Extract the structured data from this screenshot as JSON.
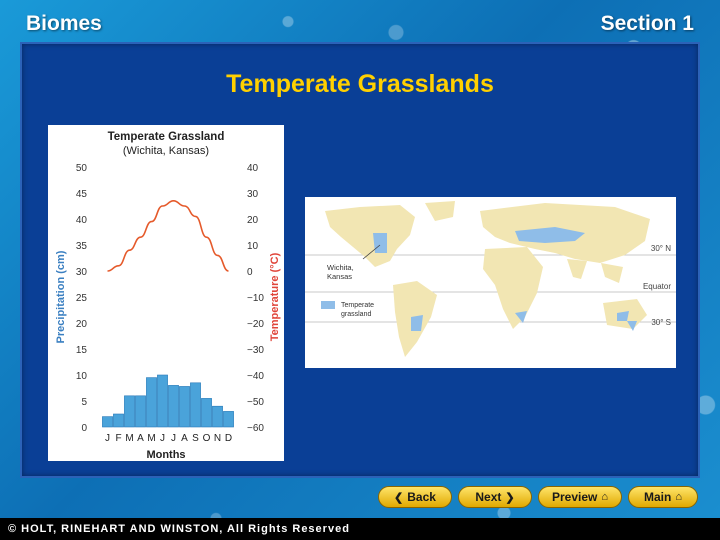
{
  "header": {
    "left": "Biomes",
    "right": "Section 1"
  },
  "slide": {
    "title": "Temperate Grasslands"
  },
  "chart_data": {
    "type": "bar",
    "title": "Temperate Grassland",
    "subtitle": "(Wichita, Kansas)",
    "categories": [
      "J",
      "F",
      "M",
      "A",
      "M",
      "J",
      "J",
      "A",
      "S",
      "O",
      "N",
      "D"
    ],
    "xlabel": "Months",
    "ylabel": "Precipitation (cm)",
    "ylabel_right": "Temperature (°C)",
    "ylim": [
      0,
      50
    ],
    "ylim_right": [
      -60,
      40
    ],
    "yticks": [
      "0",
      "5",
      "10",
      "15",
      "20",
      "25",
      "30",
      "35",
      "40",
      "45",
      "50"
    ],
    "yticks_right": [
      "−60",
      "−50",
      "−40",
      "−30",
      "−20",
      "−10",
      "0",
      "10",
      "20",
      "30",
      "40"
    ],
    "series": [
      {
        "type": "bar",
        "axis": "left",
        "values": [
          2.0,
          2.5,
          6.0,
          6.0,
          9.5,
          10.0,
          8.0,
          7.8,
          8.5,
          5.5,
          4.0,
          3.0
        ]
      },
      {
        "type": "line",
        "axis": "right",
        "values": [
          0,
          2,
          8,
          13,
          19,
          25,
          27,
          25,
          21,
          13,
          6,
          0
        ]
      }
    ],
    "colors": {
      "bars": "#4aa3da",
      "line": "#e55a2b",
      "left_axis": "#3a7fc1",
      "right_axis": "#e0453a"
    },
    "grid": false
  },
  "map": {
    "labels": {
      "location": "Wichita,\nKansas",
      "legend": "Temperate\ngrassland",
      "lat_north": "30° N",
      "equator": "Equator",
      "lat_south": "30° S"
    },
    "colors": {
      "land": "#f2e6b3",
      "grassland": "#8fbde8",
      "ocean": "#ffffff"
    }
  },
  "nav": {
    "back": "Back",
    "next": "Next",
    "preview": "Preview",
    "main": "Main"
  },
  "footer": {
    "text": "© HOLT, RINEHART AND WINSTON, All Rights Reserved"
  }
}
